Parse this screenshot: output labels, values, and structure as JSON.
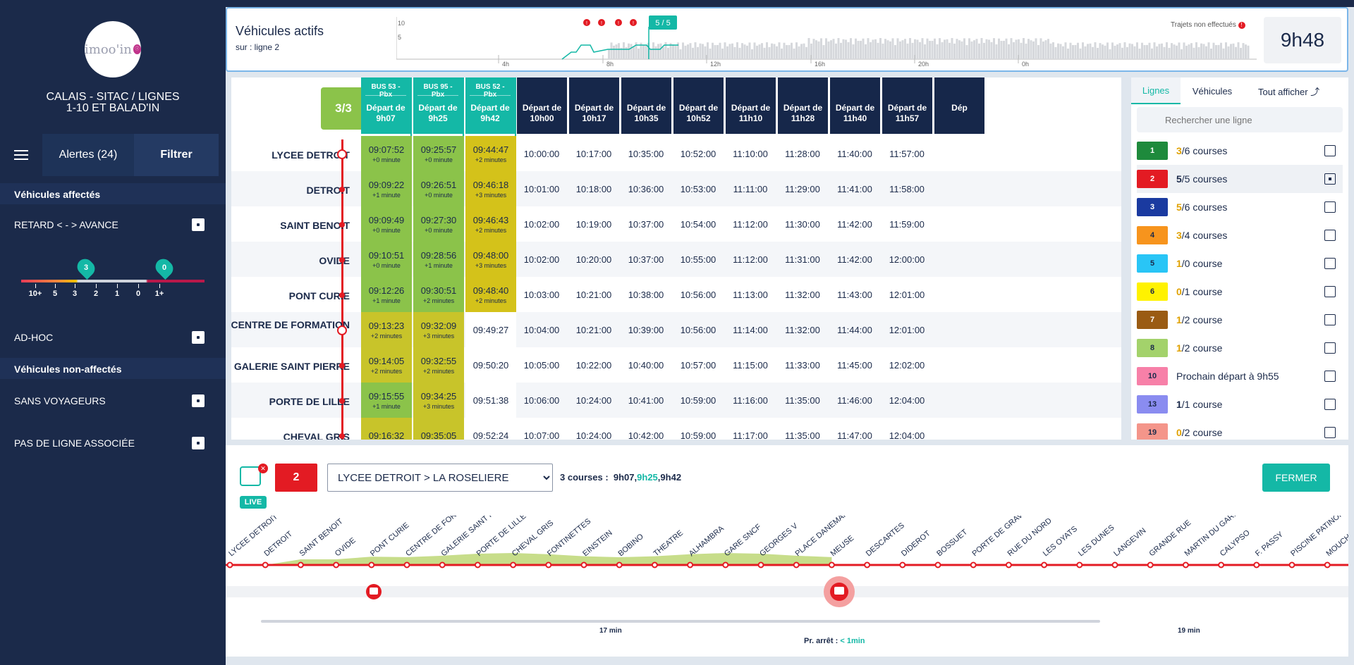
{
  "sidebar": {
    "network_title": "CALAIS - SITAC / LIGNES 1-10 ET BALAD'IN",
    "logo_text": "imoo'in",
    "alerts_label": "Alertes (24)",
    "filter_label": "Filtrer",
    "assigned_header": "Véhicules affectés",
    "delay_label": "RETARD < - > AVANCE",
    "slider_labels": [
      "10+",
      "5",
      "3",
      "2",
      "1",
      "0",
      "1+"
    ],
    "pin_left": "3",
    "pin_right": "0",
    "adhoc_label": "AD-HOC",
    "unassigned_header": "Véhicules non-affectés",
    "no_passengers_label": "SANS VOYAGEURS",
    "no_line_label": "PAS DE LIGNE ASSOCIÉE"
  },
  "header": {
    "title": "Véhicules actifs",
    "subtitle": "sur : ligne 2",
    "current_badge": "5 / 5",
    "missed_label": "Trajets non effectués",
    "axis_labels": [
      "4h",
      "8h",
      "12h",
      "16h",
      "20h",
      "0h"
    ],
    "y_labels": [
      "10",
      "5"
    ],
    "clock": "9h48"
  },
  "table": {
    "trips_badge": "3/3",
    "stops": [
      "LYCEE DETROIT",
      "DETROIT",
      "SAINT BENOIT",
      "OVIDE",
      "PONT CURIE",
      "CENTRE DE FORMATION",
      "GALERIE SAINT PIERRE",
      "PORTE DE LILLE",
      "CHEVAL GRIS"
    ],
    "live_columns": [
      {
        "bus": "BUS 53 - Pbx",
        "dep": "Départ de 9h07",
        "times": [
          "09:07:52",
          "09:09:22",
          "09:09:49",
          "09:10:51",
          "09:12:26",
          "09:13:23",
          "09:14:05",
          "09:15:55",
          "09:16:32"
        ],
        "mins": [
          "+0 minute",
          "+1 minute",
          "+0 minute",
          "+0 minute",
          "+1 minute",
          "+2 minutes",
          "+2 minutes",
          "+1 minute",
          ""
        ]
      },
      {
        "bus": "BUS 95 - Pbx",
        "dep": "Départ de 9h25",
        "times": [
          "09:25:57",
          "09:26:51",
          "09:27:30",
          "09:28:56",
          "09:30:51",
          "09:32:09",
          "09:32:55",
          "09:34:25",
          "09:35:05"
        ],
        "mins": [
          "+0 minute",
          "+0 minute",
          "+0 minute",
          "+1 minute",
          "+2 minutes",
          "+3 minutes",
          "+2 minutes",
          "+3 minutes",
          ""
        ]
      },
      {
        "bus": "BUS 52 - Pbx",
        "dep": "Départ de 9h42",
        "times": [
          "09:44:47",
          "09:46:18",
          "09:46:43",
          "09:48:00",
          "09:48:40",
          "09:49:27",
          "09:50:20",
          "09:51:38",
          "09:52:24"
        ],
        "mins": [
          "+2 minutes",
          "+3 minutes",
          "+2 minutes",
          "+3 minutes",
          "+2 minutes",
          "",
          "",
          "",
          ""
        ]
      }
    ],
    "planned_columns": [
      {
        "dep": "Départ de 10h00",
        "times": [
          "10:00:00",
          "10:01:00",
          "10:02:00",
          "10:02:00",
          "10:03:00",
          "10:04:00",
          "10:05:00",
          "10:06:00",
          "10:07:00"
        ]
      },
      {
        "dep": "Départ de 10h17",
        "times": [
          "10:17:00",
          "10:18:00",
          "10:19:00",
          "10:20:00",
          "10:21:00",
          "10:21:00",
          "10:22:00",
          "10:24:00",
          "10:24:00"
        ]
      },
      {
        "dep": "Départ de 10h35",
        "times": [
          "10:35:00",
          "10:36:00",
          "10:37:00",
          "10:37:00",
          "10:38:00",
          "10:39:00",
          "10:40:00",
          "10:41:00",
          "10:42:00"
        ]
      },
      {
        "dep": "Départ de 10h52",
        "times": [
          "10:52:00",
          "10:53:00",
          "10:54:00",
          "10:55:00",
          "10:56:00",
          "10:56:00",
          "10:57:00",
          "10:59:00",
          "10:59:00"
        ]
      },
      {
        "dep": "Départ de 11h10",
        "times": [
          "11:10:00",
          "11:11:00",
          "11:12:00",
          "11:12:00",
          "11:13:00",
          "11:14:00",
          "11:15:00",
          "11:16:00",
          "11:17:00"
        ]
      },
      {
        "dep": "Départ de 11h28",
        "times": [
          "11:28:00",
          "11:29:00",
          "11:30:00",
          "11:31:00",
          "11:32:00",
          "11:32:00",
          "11:33:00",
          "11:35:00",
          "11:35:00"
        ]
      },
      {
        "dep": "Départ de 11h40",
        "times": [
          "11:40:00",
          "11:41:00",
          "11:42:00",
          "11:42:00",
          "11:43:00",
          "11:44:00",
          "11:45:00",
          "11:46:00",
          "11:47:00"
        ]
      },
      {
        "dep": "Départ de 11h57",
        "times": [
          "11:57:00",
          "11:58:00",
          "11:59:00",
          "12:00:00",
          "12:01:00",
          "12:01:00",
          "12:02:00",
          "12:04:00",
          "12:04:00"
        ]
      },
      {
        "dep": "Dép",
        "times": [
          "",
          "",
          "",
          "",
          "",
          "",
          "",
          "",
          ""
        ]
      }
    ],
    "colors": {
      "green": "#8bc34a",
      "olive": "#c8c42a",
      "yellow": "#d4c21a",
      "teal": "#14b8a6",
      "navy": "#16274a"
    }
  },
  "lines_panel": {
    "tab_lines": "Lignes",
    "tab_vehicles": "Véhicules",
    "show_all": "Tout afficher",
    "search_placeholder": "Rechercher une ligne",
    "lines": [
      {
        "num": "1",
        "count": "3",
        "rest": "/6 courses",
        "color": "#1e8a3c",
        "text": "#fff",
        "countColor": "#e0a100",
        "checked": false
      },
      {
        "num": "2",
        "count": "5",
        "rest": "/5 courses",
        "color": "#e31b23",
        "text": "#fff",
        "countColor": "#1b2a4a",
        "checked": true
      },
      {
        "num": "3",
        "count": "5",
        "rest": "/6 courses",
        "color": "#1a3aa0",
        "text": "#fff",
        "countColor": "#e0a100",
        "checked": false
      },
      {
        "num": "4",
        "count": "3",
        "rest": "/4 courses",
        "color": "#f7941d",
        "text": "#1b2a4a",
        "countColor": "#e0a100",
        "checked": false
      },
      {
        "num": "5",
        "count": "1",
        "rest": "/0 course",
        "color": "#29c5f6",
        "text": "#1b2a4a",
        "countColor": "#e0a100",
        "checked": false
      },
      {
        "num": "6",
        "count": "0",
        "rest": "/1 course",
        "color": "#fff200",
        "text": "#1b2a4a",
        "countColor": "#e0a100",
        "checked": false
      },
      {
        "num": "7",
        "count": "1",
        "rest": "/2 course",
        "color": "#9a5b13",
        "text": "#fff",
        "countColor": "#e0a100",
        "checked": false
      },
      {
        "num": "8",
        "count": "1",
        "rest": "/2 course",
        "color": "#a3d26b",
        "text": "#1b2a4a",
        "countColor": "#e0a100",
        "checked": false
      },
      {
        "num": "10",
        "count": "",
        "rest": "Prochain départ à 9h55",
        "color": "#f780a8",
        "text": "#1b2a4a",
        "countColor": "#1b2a4a",
        "checked": false
      },
      {
        "num": "13",
        "count": "1",
        "rest": "/1 course",
        "color": "#8a8cf0",
        "text": "#1b2a4a",
        "countColor": "#1b2a4a",
        "checked": false
      },
      {
        "num": "19",
        "count": "0",
        "rest": "/2 course",
        "color": "#f4958a",
        "text": "#1b2a4a",
        "countColor": "#e0a100",
        "checked": false
      }
    ]
  },
  "bottom": {
    "live_label": "LIVE",
    "line_num": "2",
    "direction": "LYCEE DETROIT > LA ROSELIERE",
    "courses_prefix": "3 courses :",
    "course_times": [
      "9h07",
      "9h25",
      "9h42"
    ],
    "close_label": "FERMER",
    "route_stops": [
      "LYCEE DETROIT",
      "DETROIT",
      "SAINT BENOIT",
      "OVIDE",
      "PONT CURIE",
      "CENTRE DE FORMATION",
      "GALERIE SAINT PIERRE",
      "PORTE DE LILLE",
      "CHEVAL GRIS",
      "FONTINETTES",
      "EINSTEIN",
      "BOBINO",
      "THEATRE",
      "ALHAMBRA",
      "GARE SNCF",
      "GEORGES V",
      "PLACE DANEMARK",
      "MEUSE",
      "DESCARTES",
      "DIDEROT",
      "BOSSUET",
      "PORTE DE GRAVELINES",
      "RUE DU NORD",
      "LES OYATS",
      "LES DUNES",
      "LANGEVIN",
      "GRANDE RUE",
      "MARTIN DU GARD",
      "CALYPSO",
      "F. PASSY",
      "PISCINE PATINOIRE",
      "MOUCHON"
    ],
    "gap1": "17 min",
    "gap2": "19 min",
    "next_stop_label": "Pr. arrêt :",
    "next_stop_value": "< 1min"
  }
}
